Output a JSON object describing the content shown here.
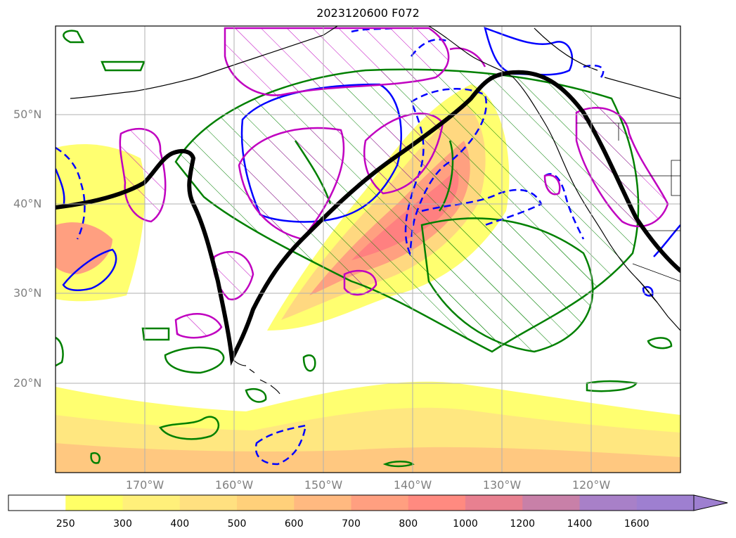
{
  "title": "2023120600 F072",
  "lat_labels": [
    "50°N",
    "40°N",
    "30°N",
    "20°N"
  ],
  "lon_labels": [
    "170°W",
    "160°W",
    "150°W",
    "140°W",
    "130°W",
    "120°W"
  ],
  "colorbar": {
    "levels": [
      "250",
      "300",
      "400",
      "500",
      "600",
      "700",
      "800",
      "1000",
      "1200",
      "1400",
      "1600"
    ],
    "colors": [
      "#ffffff",
      "#ffff66",
      "#fff07a",
      "#ffe080",
      "#ffd07a",
      "#ffb980",
      "#ff9f80",
      "#ff8a80",
      "#e88090",
      "#c880a8",
      "#a880c8",
      "#9e7fd0"
    ],
    "extend": "max"
  },
  "colors": {
    "frame": "#000000",
    "grid": "#b0b0b0",
    "green_contour": "#008000",
    "blue_contour": "#0000ff",
    "magenta_contour": "#c000c0",
    "thick_line": "#000000"
  }
}
